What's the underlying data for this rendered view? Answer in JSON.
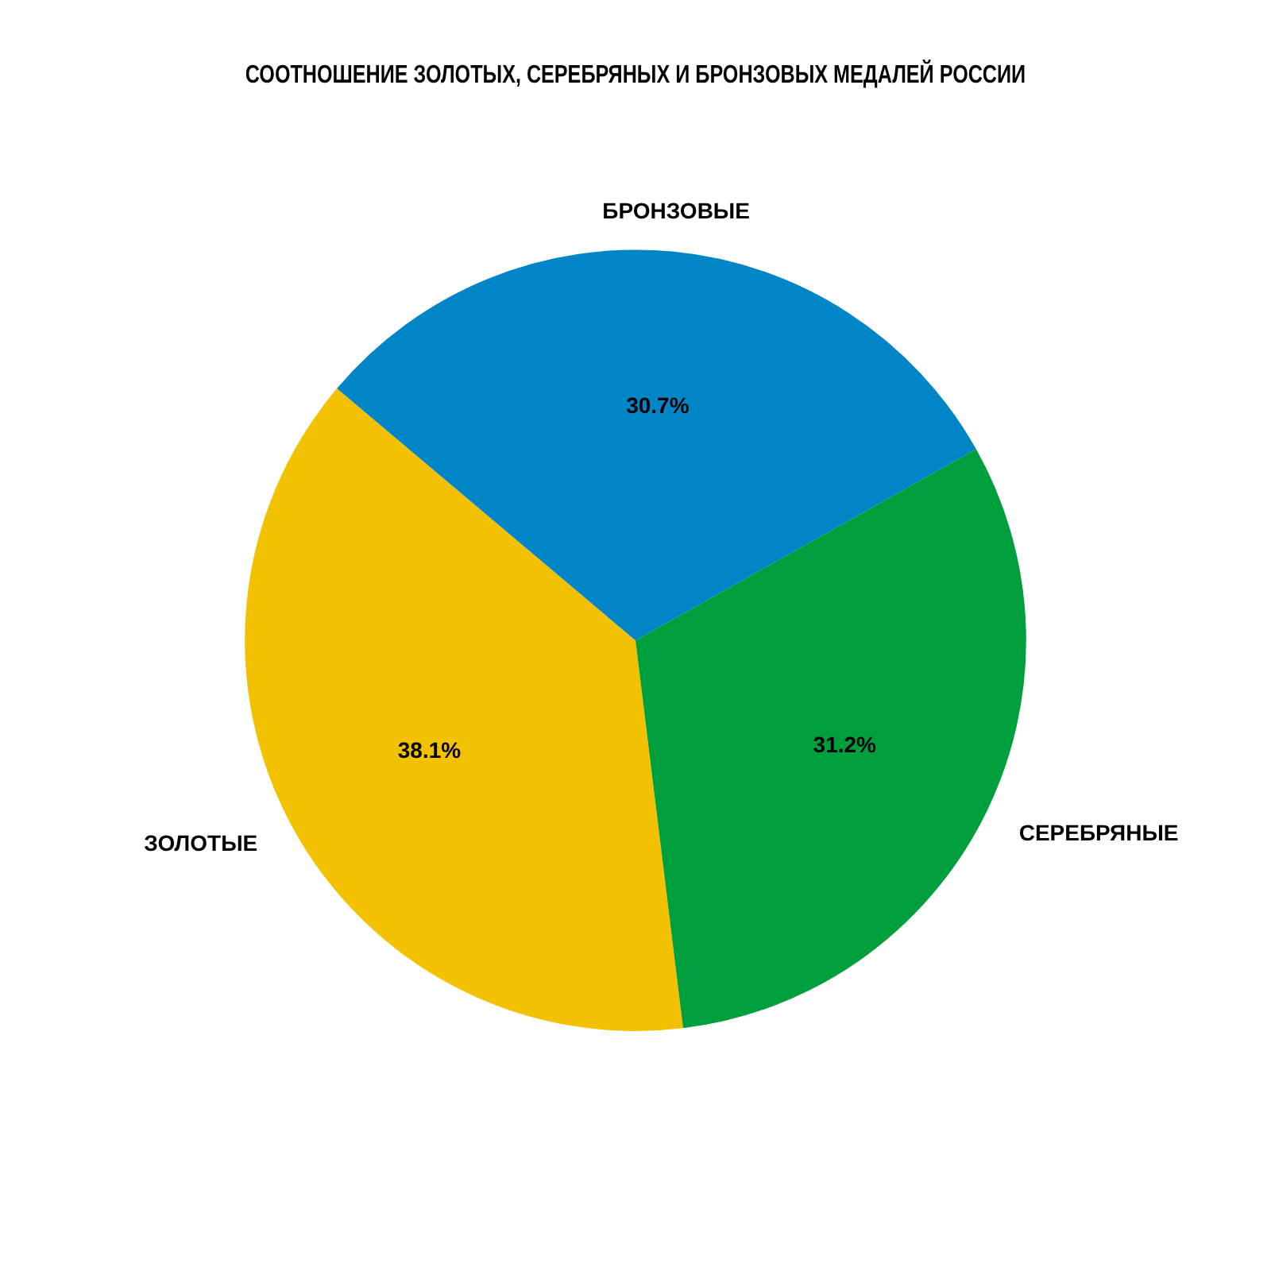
{
  "chart_data": {
    "type": "pie",
    "title": "СООТНОШЕНИЕ ЗОЛОТЫХ, СЕРЕБРЯНЫХ И БРОНЗОВЫХ МЕДАЛЕЙ РОССИИ",
    "categories": [
      "ЗОЛОТЫЕ",
      "БРОНЗОВЫЕ",
      "СЕРЕБРЯНЫЕ"
    ],
    "values": [
      38.1,
      30.7,
      31.2
    ],
    "colors": [
      "#f2c200",
      "#0085c7",
      "#009f3d"
    ],
    "value_labels": [
      "38.1%",
      "30.7%",
      "31.2%"
    ]
  }
}
